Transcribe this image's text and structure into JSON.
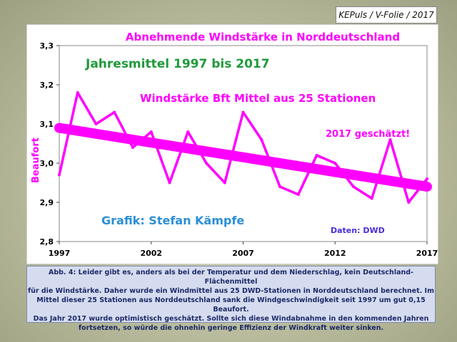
{
  "slide_tag": "KEPuls / V-Folie / 2017",
  "colors": {
    "series": "#ff00ff",
    "trend": "#ff00ff",
    "title": "#ff00ff",
    "subtitle": "#1f9a3a",
    "credit": "#2a8fd6",
    "source": "#4b2bd6",
    "caption_bg": "#d6dcef",
    "caption_text": "#1c2a68"
  },
  "chart_data": {
    "type": "line",
    "title": "Abnehmende Windstärke in Norddeutschland",
    "subtitle": "Jahresmittel 1997 bis 2017",
    "series_label": "Windstärke Bft Mittel aus 25 Stationen",
    "annotation": "2017 geschätzt!",
    "credit": "Grafik: Stefan Kämpfe",
    "source": "Daten: DWD",
    "ylabel": "Beaufort",
    "xlabel": "",
    "ylim": [
      2.8,
      3.3
    ],
    "xlim": [
      1997,
      2017
    ],
    "y_ticks": [
      "2,8",
      "2,9",
      "3,0",
      "3,1",
      "3,2",
      "3,3"
    ],
    "x_ticks": [
      "1997",
      "2002",
      "2007",
      "2012",
      "2017"
    ],
    "x": [
      1997,
      1998,
      1999,
      2000,
      2001,
      2002,
      2003,
      2004,
      2005,
      2006,
      2007,
      2008,
      2009,
      2010,
      2011,
      2012,
      2013,
      2014,
      2015,
      2016,
      2017
    ],
    "series": [
      {
        "values": [
          2.97,
          3.18,
          3.1,
          3.13,
          3.04,
          3.08,
          2.95,
          3.08,
          3.0,
          2.95,
          3.13,
          3.06,
          2.94,
          2.92,
          3.02,
          3.0,
          2.94,
          2.91,
          3.06,
          2.9,
          2.96
        ]
      }
    ],
    "trend": {
      "start": [
        1997,
        3.09
      ],
      "end": [
        2017,
        2.94
      ]
    }
  },
  "caption": {
    "lines": [
      "Abb. 4: Leider gibt es, anders als bei der Temperatur und dem Niederschlag, kein Deutschland- Flächenmittel",
      "für die Windstärke. Daher wurde ein Windmittel aus 25 DWD-Stationen in Norddeutschland berechnet. Im",
      "Mittel dieser 25 Stationen aus Norddeutschland sank die Windgeschwindigkeit seit 1997 um gut 0,15 Beaufort.",
      "Das Jahr 2017 wurde optimistisch geschätzt. Sollte sich diese Windabnahme in den kommenden Jahren",
      "fortsetzen, so würde die ohnehin geringe Effizienz der Windkraft weiter sinken."
    ]
  }
}
